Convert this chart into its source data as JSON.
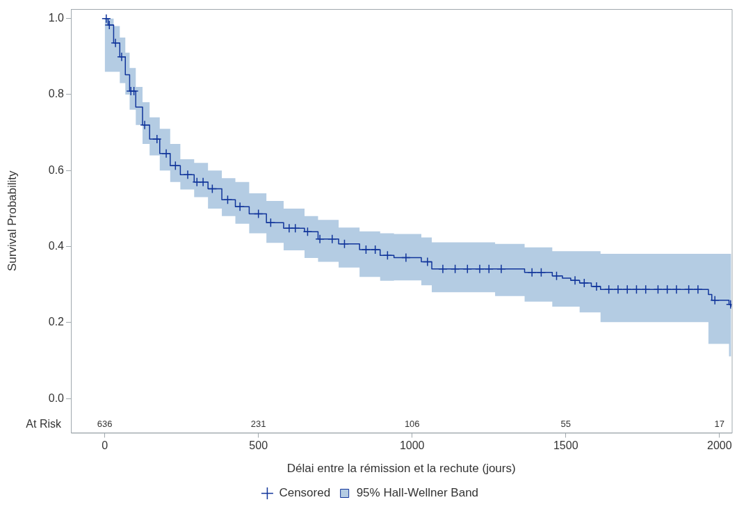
{
  "chart_data": {
    "type": "step",
    "xlabel": "Délai entre la rémission et la rechute (jours)",
    "ylabel": "Survival Probability",
    "xlim": [
      -110,
      2040
    ],
    "xticks": [
      0,
      500,
      1000,
      1500,
      2000
    ],
    "ylim": [
      -0.09,
      1.025
    ],
    "yticks": [
      {
        "value": 0,
        "label": "0.0"
      },
      {
        "value": 0.2,
        "label": "0.2"
      },
      {
        "value": 0.4,
        "label": "0.4"
      },
      {
        "value": 0.6,
        "label": "0.6"
      },
      {
        "value": 0.8,
        "label": "0.8"
      },
      {
        "value": 1,
        "label": "1.0"
      }
    ],
    "grid": false,
    "legend": "bottom",
    "series": [
      {
        "type": "scatter",
        "name": "Censored",
        "color": "#10349a",
        "marker": "cross",
        "x": [
          5,
          15,
          35,
          55,
          85,
          95,
          130,
          170,
          200,
          230,
          270,
          300,
          320,
          350,
          400,
          440,
          500,
          540,
          600,
          620,
          660,
          700,
          740,
          780,
          850,
          880,
          920,
          980,
          1050,
          1100,
          1140,
          1180,
          1220,
          1250,
          1290,
          1390,
          1420,
          1470,
          1530,
          1560,
          1600,
          1640,
          1670,
          1700,
          1730,
          1760,
          1800,
          1830,
          1860,
          1900,
          1930,
          1985,
          2036
        ],
        "values": [
          1.0,
          0.983,
          0.936,
          0.899,
          0.809,
          0.809,
          0.72,
          0.683,
          0.645,
          0.613,
          0.589,
          0.57,
          0.57,
          0.552,
          0.523,
          0.505,
          0.486,
          0.463,
          0.448,
          0.448,
          0.439,
          0.42,
          0.42,
          0.407,
          0.392,
          0.392,
          0.377,
          0.371,
          0.36,
          0.341,
          0.341,
          0.341,
          0.341,
          0.341,
          0.341,
          0.332,
          0.332,
          0.323,
          0.311,
          0.304,
          0.295,
          0.287,
          0.287,
          0.287,
          0.287,
          0.287,
          0.287,
          0.287,
          0.287,
          0.287,
          0.287,
          0.259,
          0.248
        ]
      },
      {
        "name": "95% Hall-Wellner Band",
        "color": "#10349a",
        "x": [
          0,
          11,
          29,
          49,
          67,
          81,
          101,
          123,
          146,
          179,
          213,
          246,
          291,
          336,
          381,
          425,
          470,
          526,
          582,
          650,
          694,
          761,
          829,
          896,
          941,
          1030,
          1064,
          1270,
          1366,
          1456,
          1489,
          1516,
          1545,
          1583,
          1613,
          1964,
          1975,
          2031,
          2038
        ],
        "values": [
          1.0,
          0.983,
          0.936,
          0.899,
          0.852,
          0.809,
          0.767,
          0.72,
          0.683,
          0.645,
          0.613,
          0.589,
          0.57,
          0.552,
          0.523,
          0.505,
          0.486,
          0.463,
          0.448,
          0.439,
          0.42,
          0.407,
          0.392,
          0.377,
          0.371,
          0.36,
          0.341,
          0.341,
          0.332,
          0.323,
          0.317,
          0.311,
          0.304,
          0.295,
          0.287,
          0.274,
          0.259,
          0.248,
          0.242
        ],
        "lower": [
          0.86,
          0.86,
          0.86,
          0.83,
          0.8,
          0.76,
          0.72,
          0.67,
          0.64,
          0.6,
          0.57,
          0.55,
          0.53,
          0.5,
          0.48,
          0.46,
          0.435,
          0.41,
          0.39,
          0.37,
          0.36,
          0.345,
          0.32,
          0.31,
          0.311,
          0.298,
          0.28,
          0.27,
          0.255,
          0.242,
          0.242,
          0.242,
          0.227,
          0.227,
          0.201,
          0.144,
          0.144,
          0.111,
          0.111
        ],
        "upper": [
          1.0,
          1.0,
          0.98,
          0.95,
          0.91,
          0.87,
          0.82,
          0.78,
          0.74,
          0.71,
          0.67,
          0.63,
          0.62,
          0.6,
          0.58,
          0.57,
          0.54,
          0.52,
          0.5,
          0.48,
          0.47,
          0.45,
          0.44,
          0.435,
          0.433,
          0.424,
          0.411,
          0.407,
          0.398,
          0.388,
          0.388,
          0.388,
          0.388,
          0.388,
          0.381,
          0.381,
          0.381,
          0.381,
          0.381
        ]
      }
    ],
    "annotations": [
      "At Risk",
      "636",
      "231",
      "106",
      "55",
      "17"
    ]
  }
}
